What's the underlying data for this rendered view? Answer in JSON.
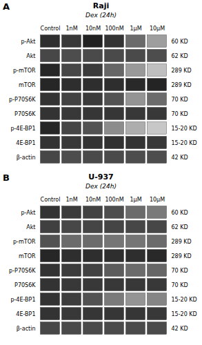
{
  "chart_data": [
    {
      "type": "heatmap",
      "title": "Raji",
      "subtitle": "Dex (24h)",
      "annotations": [
        "A"
      ],
      "x": [
        "Control",
        "1nM",
        "10nM",
        "100nM",
        "1μM",
        "10μM"
      ],
      "categories": [
        "p-Akt",
        "Akt",
        "p-mTOR",
        "mTOR",
        "p-P70S6K",
        "P70S6K",
        "p-4E-BP1",
        "4E-BP1",
        "β-actin"
      ],
      "y2categories": [
        "60 KD",
        "62 KD",
        "289 KD",
        "289 KD",
        "70 KD",
        "70 KD",
        "15-20 KD",
        "15-20 KD",
        "42 KD"
      ],
      "zlim": [
        0,
        1
      ],
      "cells": [
        [
          0.18,
          0.22,
          0.13,
          0.2,
          0.42,
          0.62
        ],
        [
          0.28,
          0.3,
          0.29,
          0.29,
          0.29,
          0.3
        ],
        [
          0.15,
          0.28,
          0.23,
          0.4,
          0.6,
          0.75
        ],
        [
          0.15,
          0.18,
          0.18,
          0.18,
          0.16,
          0.14
        ],
        [
          0.2,
          0.26,
          0.23,
          0.32,
          0.58,
          0.42
        ],
        [
          0.2,
          0.22,
          0.21,
          0.21,
          0.22,
          0.22
        ],
        [
          0.15,
          0.27,
          0.32,
          0.55,
          0.68,
          0.78
        ],
        [
          0.2,
          0.22,
          0.2,
          0.19,
          0.2,
          0.22
        ],
        [
          0.28,
          0.3,
          0.29,
          0.29,
          0.3,
          0.3
        ]
      ]
    },
    {
      "type": "heatmap",
      "title": "U-937",
      "subtitle": "Dex (24h)",
      "annotations": [
        "B"
      ],
      "x": [
        "Control",
        "1nM",
        "10nM",
        "100nM",
        "1μM",
        "10μM"
      ],
      "categories": [
        "p-Akt",
        "Akt",
        "p-mTOR",
        "mTOR",
        "p-P70S6K",
        "P70S6K",
        "p-4E-BP1",
        "4E-BP1",
        "β-actin"
      ],
      "y2categories": [
        "60 KD",
        "62 KD",
        "289 KD",
        "289 KD",
        "70 KD",
        "70 KD",
        "15-20 KD",
        "15-20 KD",
        "42 KD"
      ],
      "zlim": [
        0,
        1
      ],
      "cells": [
        [
          0.2,
          0.23,
          0.26,
          0.3,
          0.42,
          0.48
        ],
        [
          0.25,
          0.28,
          0.27,
          0.27,
          0.28,
          0.28
        ],
        [
          0.32,
          0.42,
          0.42,
          0.46,
          0.46,
          0.42
        ],
        [
          0.15,
          0.18,
          0.18,
          0.18,
          0.18,
          0.16
        ],
        [
          0.2,
          0.23,
          0.26,
          0.36,
          0.42,
          0.4
        ],
        [
          0.2,
          0.22,
          0.22,
          0.22,
          0.22,
          0.22
        ],
        [
          0.2,
          0.24,
          0.32,
          0.48,
          0.58,
          0.52
        ],
        [
          0.2,
          0.22,
          0.21,
          0.21,
          0.21,
          0.22
        ],
        [
          0.28,
          0.29,
          0.29,
          0.29,
          0.29,
          0.29
        ]
      ]
    }
  ]
}
